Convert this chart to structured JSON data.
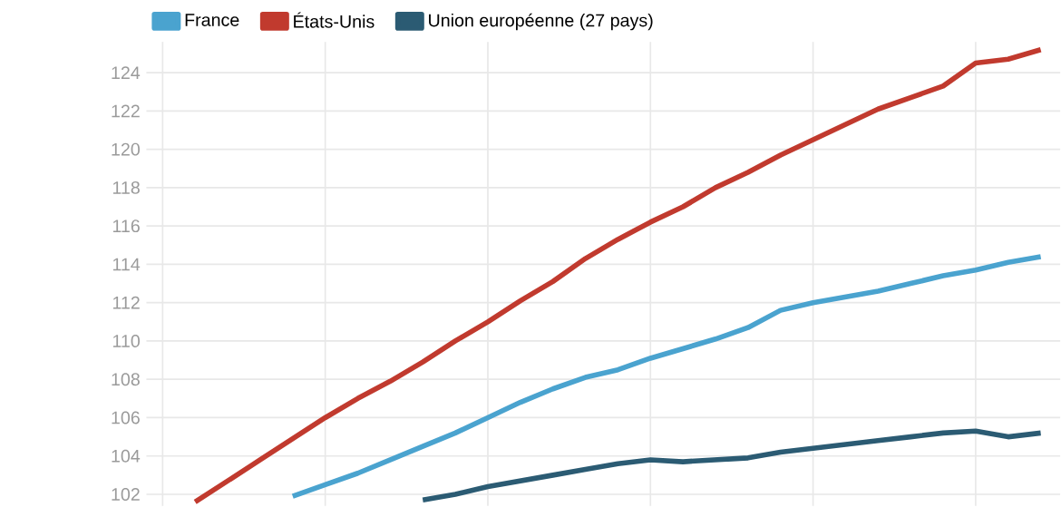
{
  "chart_data": {
    "type": "line",
    "categories": [
      null,
      null,
      null,
      null,
      null,
      null,
      null,
      null,
      null,
      null,
      null,
      null,
      null,
      null,
      null,
      null,
      null,
      null,
      null,
      null,
      null,
      null,
      null,
      null,
      null,
      null,
      null,
      null
    ],
    "series": [
      {
        "name": "France",
        "color": "#4aa3cf",
        "values": [
          null,
          null,
          null,
          null,
          101.9,
          102.5,
          103.1,
          103.8,
          104.5,
          105.2,
          106.0,
          106.8,
          107.5,
          108.1,
          108.5,
          109.1,
          109.6,
          110.1,
          110.7,
          111.6,
          112.0,
          112.3,
          112.6,
          113.0,
          113.4,
          113.7,
          114.1,
          114.4
        ]
      },
      {
        "name": "États-Unis",
        "color": "#c13a2e",
        "values": [
          null,
          101.6,
          102.7,
          103.8,
          104.9,
          106.0,
          107.0,
          107.9,
          108.9,
          110.0,
          111.0,
          112.1,
          113.1,
          114.3,
          115.3,
          116.2,
          117.0,
          118.0,
          118.8,
          119.7,
          120.5,
          121.3,
          122.1,
          122.7,
          123.3,
          124.5,
          124.7,
          125.2
        ]
      },
      {
        "name": "Union européenne (27 pays)",
        "color": "#2b5b73",
        "values": [
          null,
          null,
          null,
          null,
          null,
          null,
          null,
          null,
          101.7,
          102.0,
          102.4,
          102.7,
          103.0,
          103.3,
          103.6,
          103.8,
          103.7,
          103.8,
          103.9,
          104.2,
          104.4,
          104.6,
          104.8,
          105.0,
          105.2,
          105.3,
          105.0,
          105.2
        ]
      }
    ],
    "ylim": [
      101.4,
      125.6
    ],
    "yticks": [
      102,
      104,
      106,
      108,
      110,
      112,
      114,
      116,
      118,
      120,
      122,
      124
    ],
    "grid": true,
    "legend": "top left",
    "marker": "none",
    "line_style": "solid"
  }
}
